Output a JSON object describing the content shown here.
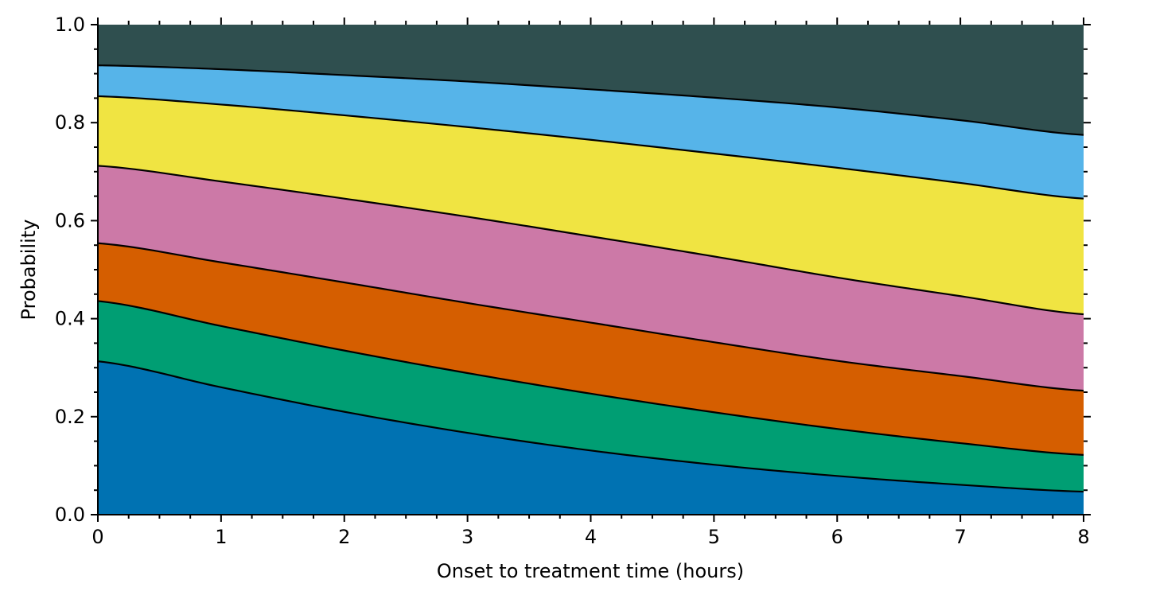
{
  "chart_data": {
    "type": "area",
    "stacked": true,
    "xlabel": "Onset to treatment time (hours)",
    "ylabel": "Probability",
    "xlim": [
      0,
      8
    ],
    "ylim": [
      0,
      1
    ],
    "xticks": [
      "0",
      "1",
      "2",
      "3",
      "4",
      "5",
      "6",
      "7",
      "8"
    ],
    "yticks": [
      "0.0",
      "0.2",
      "0.4",
      "0.6",
      "0.8",
      "1.0"
    ],
    "grid": false,
    "x": [
      0,
      1,
      2,
      3,
      4,
      5,
      6,
      7,
      8
    ],
    "cumulative_boundaries": [
      [
        0.313,
        0.26,
        0.21,
        0.167,
        0.131,
        0.102,
        0.079,
        0.061,
        0.047
      ],
      [
        0.436,
        0.385,
        0.335,
        0.289,
        0.247,
        0.209,
        0.175,
        0.146,
        0.122
      ],
      [
        0.554,
        0.515,
        0.474,
        0.432,
        0.392,
        0.352,
        0.314,
        0.283,
        0.253
      ],
      [
        0.712,
        0.68,
        0.645,
        0.608,
        0.568,
        0.527,
        0.484,
        0.446,
        0.409
      ],
      [
        0.854,
        0.837,
        0.815,
        0.791,
        0.765,
        0.737,
        0.708,
        0.677,
        0.645
      ],
      [
        0.917,
        0.909,
        0.897,
        0.884,
        0.868,
        0.851,
        0.831,
        0.805,
        0.775
      ]
    ],
    "bands": [
      {
        "color": "#0072b2"
      },
      {
        "color": "#009e73"
      },
      {
        "color": "#d55e00"
      },
      {
        "color": "#cc79a7"
      },
      {
        "color": "#f0e442"
      },
      {
        "color": "#56b4e9"
      },
      {
        "color": "#2f4f4f"
      }
    ]
  }
}
